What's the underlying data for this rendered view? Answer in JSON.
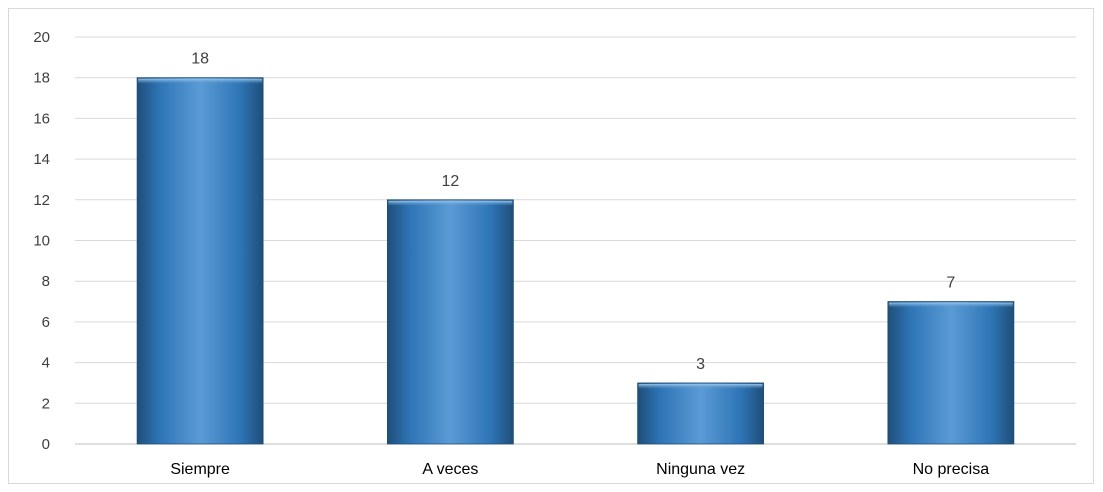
{
  "chart_data": {
    "type": "bar",
    "categories": [
      "Siempre",
      "A veces",
      "Ninguna vez",
      "No precisa"
    ],
    "values": [
      18,
      12,
      3,
      7
    ],
    "data_labels": [
      "18",
      "12",
      "3",
      "7"
    ],
    "title": "",
    "xlabel": "",
    "ylabel": "",
    "ylim": [
      0,
      20
    ],
    "yticks": [
      0,
      2,
      4,
      6,
      8,
      10,
      12,
      14,
      16,
      18,
      20
    ],
    "ytick_labels": [
      "0",
      "2",
      "4",
      "6",
      "8",
      "10",
      "12",
      "14",
      "16",
      "18",
      "20"
    ],
    "grid": true,
    "legend": "none",
    "colors": {
      "bar_light": "#5b9bd5",
      "bar_mid": "#2e75b6",
      "bar_dark": "#1f4e79",
      "gridline": "#d9d9d9",
      "axis": "#bfbfbf"
    }
  }
}
